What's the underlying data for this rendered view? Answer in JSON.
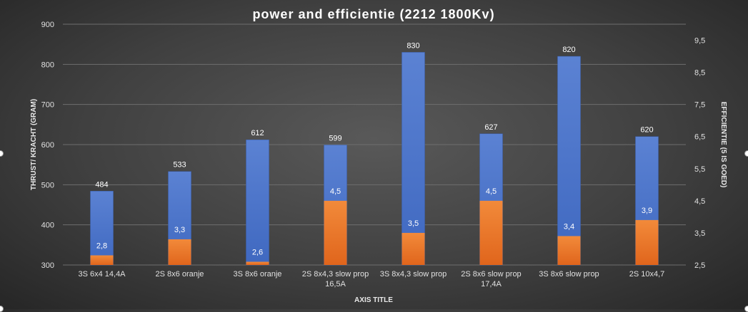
{
  "chart_data": {
    "type": "bar",
    "title": "power and efficientie (2212 1800Kv)",
    "xlabel": "AXIS TITLE",
    "ylabel": "THRUST/ KRACHT (GRAM)",
    "y2label": "EFFICIENTIE (5 IS GOED)",
    "categories": [
      "3S 6x4 14,4A",
      "2S 8x6 oranje",
      "3S 8x6 oranje",
      "2S 8x4,3 slow prop 16,5A",
      "3S 8x4,3 slow prop",
      "2S 8x6 slow prop 17,4A",
      "3S 8x6 slow prop",
      "2S 10x4,7"
    ],
    "category_lines": [
      [
        "3S 6x4 14,4A"
      ],
      [
        "2S 8x6 oranje"
      ],
      [
        "3S 8x6 oranje"
      ],
      [
        "2S 8x4,3 slow prop",
        "16,5A"
      ],
      [
        "3S 8x4,3 slow prop"
      ],
      [
        "2S 8x6 slow prop",
        "17,4A"
      ],
      [
        "3S 8x6 slow prop"
      ],
      [
        "2S 10x4,7"
      ]
    ],
    "series": [
      {
        "axis": "left",
        "color": "#4a72c4",
        "values": [
          484,
          533,
          612,
          599,
          830,
          627,
          820,
          620
        ],
        "labels": [
          "484",
          "533",
          "612",
          "599",
          "830",
          "627",
          "820",
          "620"
        ]
      },
      {
        "axis": "right",
        "color": "#ed7d31",
        "values": [
          2.8,
          3.3,
          2.6,
          4.5,
          3.5,
          4.5,
          3.4,
          3.9
        ],
        "labels": [
          "2,8",
          "3,3",
          "2,6",
          "4,5",
          "3,5",
          "4,5",
          "3,4",
          "3,9"
        ]
      }
    ],
    "ylim": [
      300,
      900
    ],
    "yticks": [
      "300",
      "400",
      "500",
      "600",
      "700",
      "800",
      "900"
    ],
    "y2lim": [
      2.5,
      10
    ],
    "y2ticks": [
      "2,5",
      "3,5",
      "4,5",
      "5,5",
      "6,5",
      "7,5",
      "8,5",
      "9,5"
    ],
    "grid": true
  }
}
